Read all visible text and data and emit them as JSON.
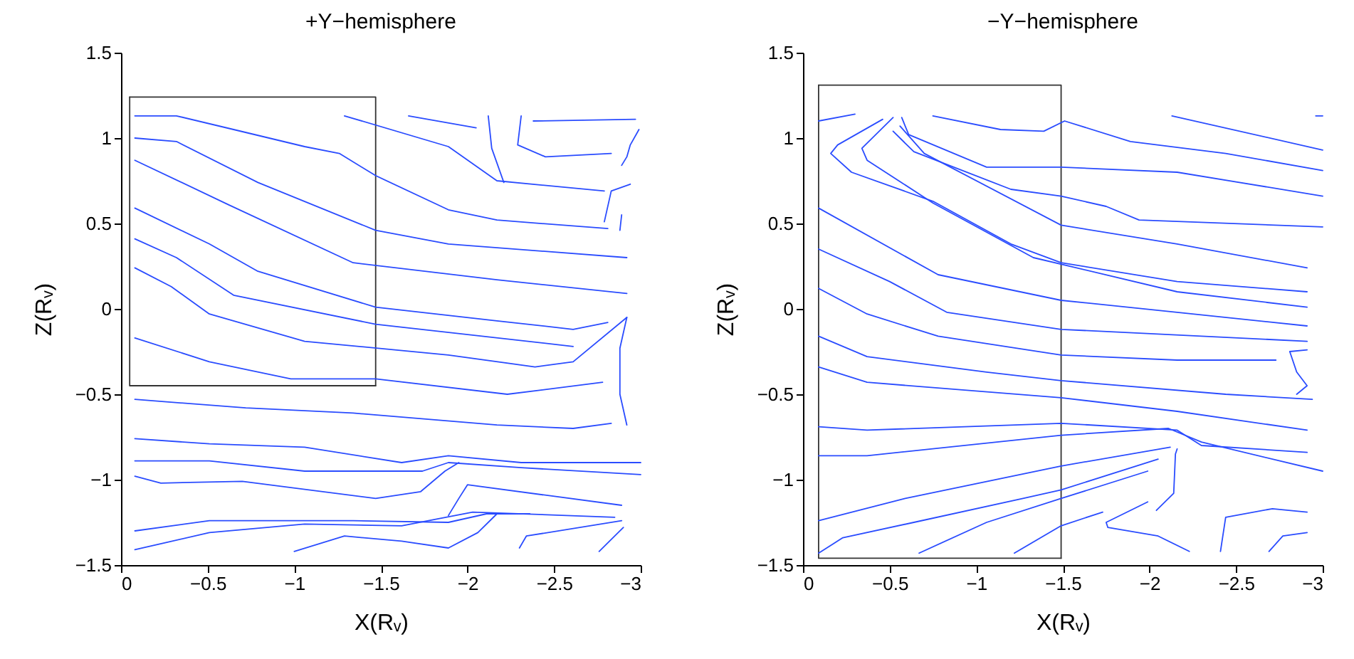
{
  "chart_data": [
    {
      "type": "line",
      "title": "+Y−hemisphere",
      "xlabel": "X(Rᵥ)",
      "ylabel": "Z(Rᵥ)",
      "xlim": [
        0,
        -3
      ],
      "ylim": [
        -1.5,
        1.5
      ],
      "xticks": [
        0,
        -0.5,
        -1,
        -1.5,
        -2,
        -2.5,
        -3
      ],
      "yticks": [
        -1.5,
        -1,
        -0.5,
        0,
        0.5,
        1,
        1.5
      ],
      "grid": false,
      "legend": false,
      "series": [
        {
          "color": "#333333",
          "x": [
            -0.05,
            -1.47,
            -1.47
          ],
          "values": [
            1.24,
            1.24,
            -0.45
          ]
        },
        {
          "color": "#333333",
          "x": [
            -1.47,
            -0.05,
            -0.05
          ],
          "values": [
            -0.45,
            -0.45,
            1.24
          ]
        },
        {
          "color": "#2a4cff",
          "x": [
            -0.08,
            -0.32,
            -0.65,
            -1.06,
            -1.26,
            -1.47,
            -1.89,
            -2.17,
            -2.81
          ],
          "values": [
            1.13,
            1.13,
            1.05,
            0.95,
            0.91,
            0.78,
            0.58,
            0.52,
            0.47
          ]
        },
        {
          "color": "#2a4cff",
          "x": [
            -0.08,
            -0.32,
            -0.79,
            -1.47,
            -1.89,
            -2.92
          ],
          "values": [
            1.0,
            0.98,
            0.74,
            0.46,
            0.38,
            0.3
          ]
        },
        {
          "color": "#2a4cff",
          "x": [
            -0.08,
            -0.62,
            -1.34,
            -2.17,
            -2.92
          ],
          "values": [
            0.87,
            0.61,
            0.27,
            0.17,
            0.09
          ]
        },
        {
          "color": "#2a4cff",
          "x": [
            -0.08,
            -0.51,
            -0.79,
            -1.47,
            -2.17,
            -2.61,
            -2.81
          ],
          "values": [
            0.59,
            0.38,
            0.22,
            0.01,
            -0.07,
            -0.12,
            -0.08
          ]
        },
        {
          "color": "#2a4cff",
          "x": [
            -0.08,
            -0.32,
            -0.65,
            -1.47,
            -2.61
          ],
          "values": [
            0.41,
            0.3,
            0.08,
            -0.09,
            -0.22
          ]
        },
        {
          "color": "#2a4cff",
          "x": [
            -0.08,
            -0.29,
            -0.51,
            -1.06,
            -1.89,
            -2.39,
            -2.61,
            -2.92
          ],
          "values": [
            0.24,
            0.13,
            -0.03,
            -0.19,
            -0.27,
            -0.34,
            -0.31,
            -0.05
          ]
        },
        {
          "color": "#2a4cff",
          "x": [
            -0.08,
            -0.51,
            -0.98,
            -1.47,
            -2.23,
            -2.78
          ],
          "values": [
            -0.17,
            -0.31,
            -0.41,
            -0.41,
            -0.5,
            -0.43
          ]
        },
        {
          "color": "#2a4cff",
          "x": [
            -0.08,
            -0.72,
            -1.34,
            -2.17,
            -2.61,
            -2.83
          ],
          "values": [
            -0.53,
            -0.58,
            -0.61,
            -0.68,
            -0.7,
            -0.67
          ]
        },
        {
          "color": "#2a4cff",
          "x": [
            -0.08,
            -0.51,
            -1.06,
            -1.62,
            -1.89,
            -2.31,
            -3
          ],
          "values": [
            -0.76,
            -0.79,
            -0.81,
            -0.9,
            -0.86,
            -0.9,
            -0.9
          ]
        },
        {
          "color": "#2a4cff",
          "x": [
            -0.08,
            -0.51,
            -1.06,
            -1.74,
            -1.89,
            -2.31,
            -3
          ],
          "values": [
            -0.89,
            -0.89,
            -0.95,
            -0.95,
            -0.9,
            -0.93,
            -0.97
          ]
        },
        {
          "color": "#2a4cff",
          "x": [
            -0.08,
            -0.23,
            -0.7,
            -1.47,
            -1.73,
            -1.87,
            -1.95
          ],
          "values": [
            -0.98,
            -1.02,
            -1.01,
            -1.11,
            -1.07,
            -0.95,
            -0.9
          ]
        },
        {
          "color": "#2a4cff",
          "x": [
            -1.89,
            -1.95,
            -2.0,
            -2.89
          ],
          "values": [
            -1.21,
            -1.11,
            -1.03,
            -1.15
          ]
        },
        {
          "color": "#2a4cff",
          "x": [
            -0.08,
            -0.51,
            -1.34,
            -1.89,
            -2.11,
            -2.36
          ],
          "values": [
            -1.3,
            -1.24,
            -1.24,
            -1.25,
            -1.2,
            -1.2
          ]
        },
        {
          "color": "#2a4cff",
          "x": [
            -0.08,
            -0.51,
            -1.06,
            -1.62,
            -2.03,
            -2.85
          ],
          "values": [
            -1.41,
            -1.31,
            -1.26,
            -1.27,
            -1.19,
            -1.22
          ]
        },
        {
          "color": "#2a4cff",
          "x": [
            -1.0,
            -1.29,
            -1.62,
            -1.89,
            -2.06,
            -2.17
          ],
          "values": [
            -1.42,
            -1.33,
            -1.36,
            -1.4,
            -1.31,
            -1.2
          ]
        },
        {
          "color": "#2a4cff",
          "x": [
            -2.3,
            -2.34,
            -2.89
          ],
          "values": [
            -1.4,
            -1.33,
            -1.24
          ]
        },
        {
          "color": "#2a4cff",
          "x": [
            -2.76,
            -2.9
          ],
          "values": [
            -1.42,
            -1.28
          ]
        },
        {
          "color": "#2a4cff",
          "x": [
            -1.29,
            -1.89,
            -2.17,
            -2.79
          ],
          "values": [
            1.13,
            0.95,
            0.75,
            0.69
          ]
        },
        {
          "color": "#2a4cff",
          "x": [
            -1.66,
            -2.05
          ],
          "values": [
            1.13,
            1.06
          ]
        },
        {
          "color": "#2a4cff",
          "x": [
            -2.12,
            -2.14,
            -2.21
          ],
          "values": [
            1.13,
            0.94,
            0.74
          ]
        },
        {
          "color": "#2a4cff",
          "x": [
            -2.31,
            -2.29,
            -2.45,
            -2.83
          ],
          "values": [
            1.13,
            0.96,
            0.89,
            0.91
          ]
        },
        {
          "color": "#2a4cff",
          "x": [
            -2.38,
            -2.97
          ],
          "values": [
            1.1,
            1.11
          ]
        },
        {
          "color": "#2a4cff",
          "x": [
            -2.79,
            -2.83,
            -2.94
          ],
          "values": [
            0.51,
            0.69,
            0.73
          ]
        },
        {
          "color": "#2a4cff",
          "x": [
            -2.92,
            -2.88,
            -2.88,
            -2.92
          ],
          "values": [
            -0.05,
            -0.23,
            -0.5,
            -0.68
          ]
        },
        {
          "color": "#2a4cff",
          "x": [
            -2.99,
            -2.94,
            -2.92,
            -2.89
          ],
          "values": [
            1.05,
            0.96,
            0.89,
            0.84
          ]
        },
        {
          "color": "#2a4cff",
          "x": [
            -2.89,
            -2.88
          ],
          "values": [
            0.55,
            0.46
          ]
        }
      ]
    },
    {
      "type": "line",
      "title": "−Y−hemisphere",
      "xlabel": "X(Rᵥ)",
      "ylabel": "Z(Rᵥ)",
      "xlim": [
        0,
        -3
      ],
      "ylim": [
        -1.5,
        1.5
      ],
      "xticks": [
        0,
        -0.5,
        -1,
        -1.5,
        -2,
        -2.5,
        -3
      ],
      "yticks": [
        -1.5,
        -1,
        -0.5,
        0,
        0.5,
        1,
        1.5
      ],
      "grid": false,
      "legend": false,
      "series": [
        {
          "color": "#333333",
          "x": [
            -0.09,
            -1.49,
            -1.49
          ],
          "values": [
            1.31,
            1.31,
            -1.46
          ]
        },
        {
          "color": "#333333",
          "x": [
            -1.49,
            -0.09,
            -0.09
          ],
          "values": [
            -1.46,
            -1.46,
            1.31
          ]
        },
        {
          "color": "#2a4cff",
          "x": [
            -0.09,
            -0.3
          ],
          "values": [
            1.1,
            1.14
          ]
        },
        {
          "color": "#2a4cff",
          "x": [
            -0.75,
            -1.14,
            -1.39,
            -1.51,
            -1.89,
            -2.44,
            -3
          ],
          "values": [
            1.13,
            1.05,
            1.04,
            1.1,
            0.98,
            0.91,
            0.81
          ]
        },
        {
          "color": "#2a4cff",
          "x": [
            -2.13,
            -3
          ],
          "values": [
            1.13,
            0.93
          ]
        },
        {
          "color": "#2a4cff",
          "x": [
            -2.96,
            -3
          ],
          "values": [
            1.13,
            1.13
          ]
        },
        {
          "color": "#2a4cff",
          "x": [
            -0.46,
            -0.2,
            -0.16,
            -0.28,
            -0.75,
            -1.2,
            -1.49,
            -2.16,
            -2.91
          ],
          "values": [
            1.11,
            0.96,
            0.91,
            0.8,
            0.63,
            0.38,
            0.27,
            0.16,
            0.1
          ]
        },
        {
          "color": "#2a4cff",
          "x": [
            -0.52,
            -0.34,
            -0.37,
            -0.75,
            -1.33,
            -2.16,
            -2.91
          ],
          "values": [
            1.12,
            0.94,
            0.87,
            0.62,
            0.3,
            0.1,
            0.01
          ]
        },
        {
          "color": "#2a4cff",
          "x": [
            -0.57,
            -0.61,
            -1.06,
            -1.49,
            -2.16,
            -3
          ],
          "values": [
            1.12,
            1.02,
            0.83,
            0.83,
            0.8,
            0.66
          ]
        },
        {
          "color": "#2a4cff",
          "x": [
            -0.52,
            -0.64,
            -1.2,
            -1.49,
            -1.75,
            -1.94,
            -3
          ],
          "values": [
            1.04,
            0.92,
            0.7,
            0.66,
            0.6,
            0.52,
            0.48
          ]
        },
        {
          "color": "#2a4cff",
          "x": [
            -0.56,
            -0.7,
            -1.49,
            -2.16,
            -2.91
          ],
          "values": [
            1.07,
            0.91,
            0.49,
            0.38,
            0.24
          ]
        },
        {
          "color": "#2a4cff",
          "x": [
            -0.09,
            -0.78,
            -1.49,
            -2.16,
            -2.91
          ],
          "values": [
            0.59,
            0.2,
            0.05,
            -0.02,
            -0.1
          ]
        },
        {
          "color": "#2a4cff",
          "x": [
            -0.09,
            -0.5,
            -0.83,
            -1.49,
            -2.91
          ],
          "values": [
            0.35,
            0.16,
            -0.02,
            -0.12,
            -0.19
          ]
        },
        {
          "color": "#2a4cff",
          "x": [
            -0.09,
            -0.37,
            -0.78,
            -1.49,
            -2.16,
            -2.73
          ],
          "values": [
            0.12,
            -0.03,
            -0.16,
            -0.27,
            -0.3,
            -0.3
          ]
        },
        {
          "color": "#2a4cff",
          "x": [
            -0.09,
            -0.37,
            -1.06,
            -1.49,
            -2.44,
            -2.94
          ],
          "values": [
            -0.16,
            -0.28,
            -0.37,
            -0.42,
            -0.5,
            -0.53
          ]
        },
        {
          "color": "#2a4cff",
          "x": [
            -0.09,
            -0.37,
            -1.49,
            -2.16,
            -2.91
          ],
          "values": [
            -0.34,
            -0.43,
            -0.52,
            -0.6,
            -0.71
          ]
        },
        {
          "color": "#2a4cff",
          "x": [
            -0.09,
            -0.37,
            -1.49,
            -2.16,
            -2.3,
            -2.91
          ],
          "values": [
            -0.69,
            -0.71,
            -0.67,
            -0.71,
            -0.8,
            -0.84
          ]
        },
        {
          "color": "#2a4cff",
          "x": [
            -0.09,
            -0.37,
            -1.49,
            -2.11,
            -2.3,
            -3
          ],
          "values": [
            -0.86,
            -0.86,
            -0.74,
            -0.7,
            -0.78,
            -0.95
          ]
        },
        {
          "color": "#2a4cff",
          "x": [
            -0.09,
            -0.59,
            -1.49,
            -2.12
          ],
          "values": [
            -1.24,
            -1.11,
            -0.92,
            -0.81
          ]
        },
        {
          "color": "#2a4cff",
          "x": [
            -0.09,
            -0.23,
            -0.64,
            -1.27,
            -1.49,
            -2.05
          ],
          "values": [
            -1.43,
            -1.34,
            -1.25,
            -1.11,
            -1.06,
            -0.88
          ]
        },
        {
          "color": "#2a4cff",
          "x": [
            -0.67,
            -1.06,
            -1.49,
            -1.99
          ],
          "values": [
            -1.43,
            -1.25,
            -1.11,
            -0.95
          ]
        },
        {
          "color": "#2a4cff",
          "x": [
            -1.22,
            -1.49,
            -1.73
          ],
          "values": [
            -1.43,
            -1.27,
            -1.19
          ]
        },
        {
          "color": "#2a4cff",
          "x": [
            -1.99,
            -1.75,
            -1.76,
            -2.05,
            -2.23
          ],
          "values": [
            -1.13,
            -1.25,
            -1.28,
            -1.33,
            -1.42
          ]
        },
        {
          "color": "#2a4cff",
          "x": [
            -2.16,
            -2.15,
            -2.14,
            -2.04
          ],
          "values": [
            -0.82,
            -0.85,
            -1.08,
            -1.18
          ]
        },
        {
          "color": "#2a4cff",
          "x": [
            -2.41,
            -2.44,
            -2.71,
            -2.91
          ],
          "values": [
            -1.42,
            -1.22,
            -1.17,
            -1.19
          ]
        },
        {
          "color": "#2a4cff",
          "x": [
            -2.69,
            -2.77,
            -2.91
          ],
          "values": [
            -1.42,
            -1.33,
            -1.31
          ]
        },
        {
          "color": "#2a4cff",
          "x": [
            -2.91,
            -2.81,
            -2.85,
            -2.91,
            -2.85
          ],
          "values": [
            -0.24,
            -0.25,
            -0.37,
            -0.45,
            -0.5
          ]
        }
      ]
    }
  ]
}
